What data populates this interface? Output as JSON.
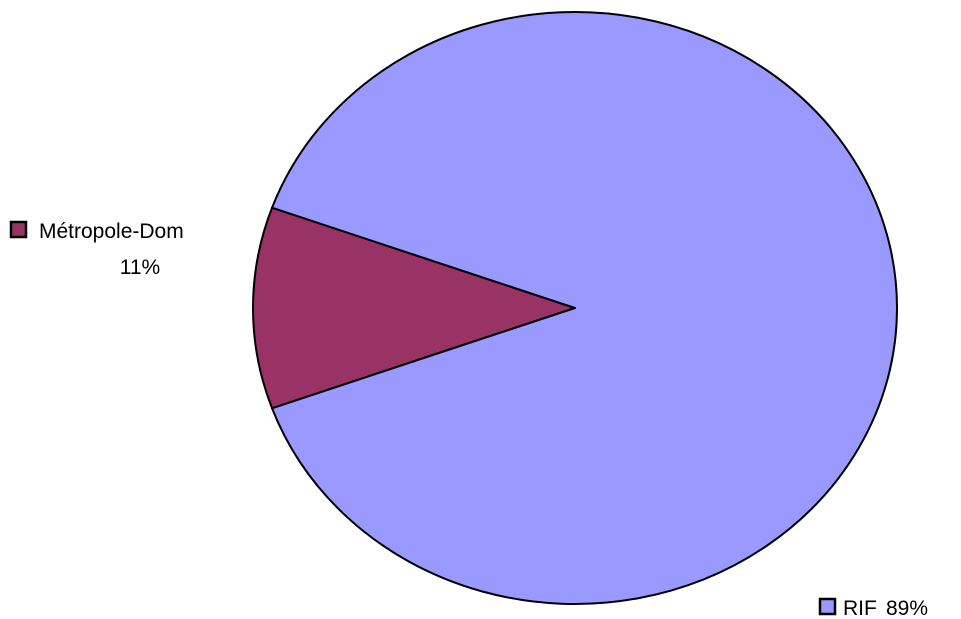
{
  "chart_data": {
    "type": "pie",
    "title": "",
    "slices": [
      {
        "label": "Métropole-Dom",
        "value": 11,
        "value_label": "11%",
        "color": "#993366"
      },
      {
        "label": "RIF",
        "value": 89,
        "value_label": "89%",
        "color": "#9999FF"
      }
    ],
    "legend": "data labels beside slices with color keys",
    "edge_color": "#000000"
  }
}
